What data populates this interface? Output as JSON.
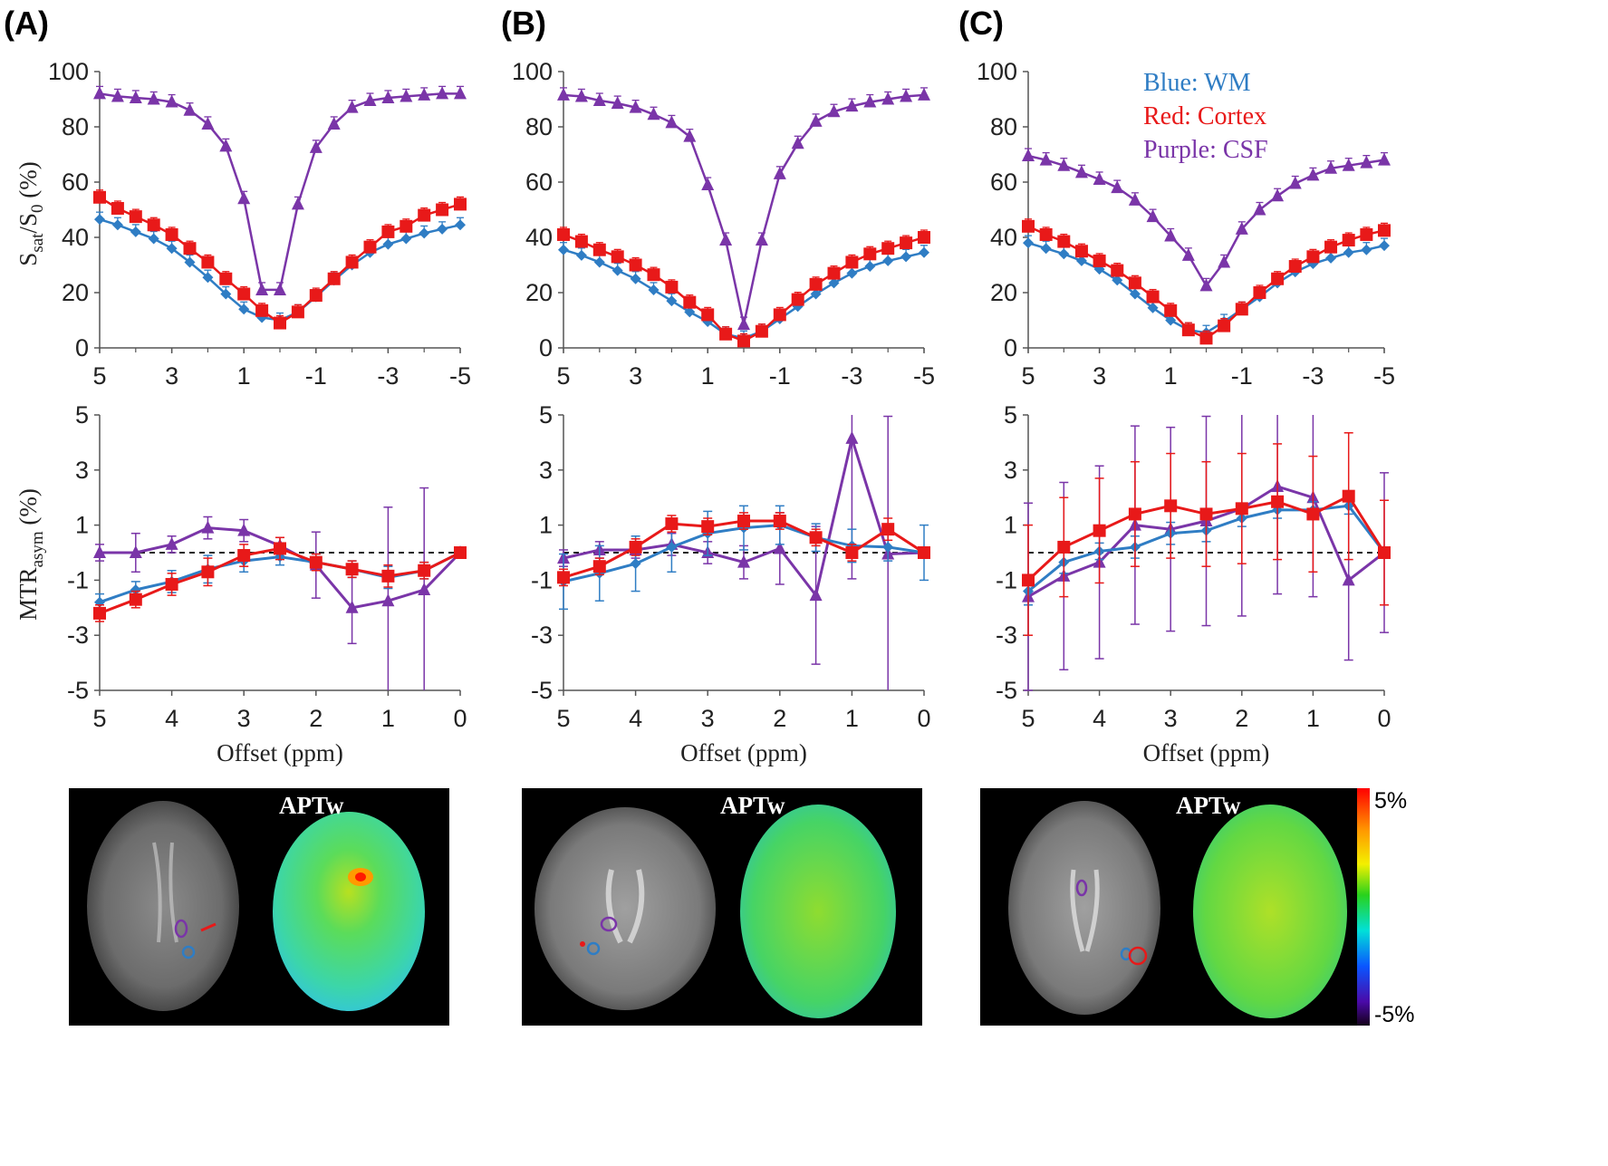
{
  "panel_labels": [
    "(A)",
    "(B)",
    "(C)"
  ],
  "legend": {
    "wm": "Blue: WM",
    "cortex": "Red: Cortex",
    "csf": "Purple: CSF"
  },
  "colors": {
    "wm": "#2f7dc4",
    "cortex": "#e81919",
    "csf": "#7a35a8"
  },
  "top_y_label": {
    "main": "S",
    "sub1": "sat",
    "mid": "/S",
    "sub2": "0",
    "tail": " (%)"
  },
  "mid_y_label": {
    "main": "MTR",
    "sub": "asym",
    "tail": " (%)"
  },
  "x_title": "Offset (ppm)",
  "top_x_ticks": [
    "5",
    "3",
    "1",
    "-1",
    "-3",
    "-5"
  ],
  "top_y_ticks": [
    "0",
    "20",
    "40",
    "60",
    "80",
    "100"
  ],
  "mid_x_ticks": [
    "5",
    "4",
    "3",
    "2",
    "1",
    "0"
  ],
  "mid_y_ticks": [
    "-5",
    "-3",
    "-1",
    "1",
    "3",
    "5"
  ],
  "image_label": "APTw",
  "colorbar": {
    "max": "5%",
    "min": "-5%"
  },
  "chart_data": [
    {
      "type": "line",
      "panel": "(A)",
      "xlabel": "",
      "ylabel": "Ssat/S0 (%)",
      "xlim": [
        5,
        -5
      ],
      "ylim": [
        0,
        100
      ],
      "x": [
        5,
        4.5,
        4,
        3.5,
        3,
        2.5,
        2,
        1.5,
        1,
        0.5,
        0,
        -0.5,
        -1,
        -1.5,
        -2,
        -2.5,
        -3,
        -3.5,
        -4,
        -4.5,
        -5
      ],
      "series": [
        {
          "name": "WM",
          "marker": "diamond",
          "values": [
            46.5,
            44.5,
            42,
            39.5,
            36,
            31,
            25.5,
            19.5,
            14,
            11,
            10,
            13,
            18.5,
            24.5,
            30,
            34.5,
            37.5,
            39.5,
            41.5,
            43,
            44.5
          ]
        },
        {
          "name": "Cortex",
          "marker": "square",
          "values": [
            54.5,
            50.5,
            47.5,
            44.5,
            41,
            36,
            31,
            25,
            19.5,
            13.5,
            9,
            13,
            19,
            25,
            31,
            36.5,
            42,
            44,
            48,
            50,
            52
          ]
        },
        {
          "name": "CSF",
          "marker": "triangle",
          "values": [
            92,
            91,
            90.5,
            90,
            89,
            86,
            81,
            73,
            54,
            21,
            21,
            52,
            72.5,
            81,
            87,
            89.5,
            90.5,
            91,
            91.5,
            92,
            92
          ]
        }
      ]
    },
    {
      "type": "line",
      "panel": "(B)",
      "xlabel": "",
      "ylabel": "Ssat/S0 (%)",
      "xlim": [
        5,
        -5
      ],
      "ylim": [
        0,
        100
      ],
      "x": [
        5,
        4.5,
        4,
        3.5,
        3,
        2.5,
        2,
        1.5,
        1,
        0.5,
        0,
        -0.5,
        -1,
        -1.5,
        -2,
        -2.5,
        -3,
        -3.5,
        -4,
        -4.5,
        -5
      ],
      "series": [
        {
          "name": "WM",
          "marker": "diamond",
          "values": [
            35.5,
            33.5,
            31,
            28,
            25,
            21,
            17,
            13,
            9.5,
            5,
            3.5,
            6,
            10.5,
            15,
            19.5,
            23.5,
            27,
            29.5,
            31.5,
            33,
            34.5
          ]
        },
        {
          "name": "Cortex",
          "marker": "square",
          "values": [
            41,
            38.5,
            35.5,
            33,
            30,
            26.5,
            22,
            16.5,
            12,
            5,
            2.5,
            6,
            12,
            17.5,
            23,
            27,
            31,
            34,
            36,
            38,
            40
          ]
        },
        {
          "name": "CSF",
          "marker": "triangle",
          "values": [
            91.5,
            91,
            89.5,
            88.5,
            87,
            84.5,
            81.5,
            76.5,
            59,
            39,
            8.5,
            39,
            63,
            74,
            82,
            85.5,
            87.5,
            89,
            90,
            91,
            91.5
          ]
        }
      ]
    },
    {
      "type": "line",
      "panel": "(C)",
      "xlabel": "",
      "ylabel": "Ssat/S0 (%)",
      "xlim": [
        5,
        -5
      ],
      "ylim": [
        0,
        100
      ],
      "x": [
        5,
        4.5,
        4,
        3.5,
        3,
        2.5,
        2,
        1.5,
        1,
        0.5,
        0,
        -0.5,
        -1,
        -1.5,
        -2,
        -2.5,
        -3,
        -3.5,
        -4,
        -4.5,
        -5
      ],
      "series": [
        {
          "name": "WM",
          "marker": "diamond",
          "values": [
            38,
            36,
            34,
            31.5,
            28.5,
            24.5,
            19.5,
            14.5,
            10,
            6.5,
            5.5,
            9.5,
            14,
            18.5,
            23.5,
            27.5,
            30.5,
            32.5,
            34.5,
            35.5,
            37
          ]
        },
        {
          "name": "Cortex",
          "marker": "square",
          "values": [
            44,
            41,
            38.5,
            35,
            31.5,
            28,
            23.5,
            18.5,
            13.5,
            6.5,
            3.5,
            8,
            14,
            20,
            25,
            29.5,
            33,
            36.5,
            39,
            41,
            42.5
          ]
        },
        {
          "name": "CSF",
          "marker": "triangle",
          "values": [
            69.5,
            68,
            66,
            63.5,
            61,
            58,
            53.5,
            47.5,
            40.5,
            33.5,
            22.5,
            31,
            43,
            50,
            55,
            59.5,
            62.5,
            65,
            66,
            67,
            68
          ]
        }
      ]
    },
    {
      "type": "line",
      "panel": "(A)",
      "xlabel": "Offset (ppm)",
      "ylabel": "MTRasym (%)",
      "xlim": [
        5,
        0
      ],
      "ylim": [
        -5,
        5
      ],
      "reference_line": 0,
      "x": [
        5,
        4.5,
        4,
        3.5,
        3,
        2.5,
        2,
        1.5,
        1,
        0.5,
        0
      ],
      "series": [
        {
          "name": "WM",
          "marker": "diamond",
          "values": [
            -1.8,
            -1.35,
            -1.05,
            -0.6,
            -0.3,
            -0.15,
            -0.35,
            -0.6,
            -0.9,
            -0.65,
            0
          ],
          "err": [
            0.3,
            0.3,
            0.4,
            0.5,
            0.4,
            0.3,
            0.3,
            0.3,
            0.4,
            0.3,
            0
          ]
        },
        {
          "name": "Cortex",
          "marker": "square",
          "values": [
            -2.2,
            -1.7,
            -1.15,
            -0.7,
            -0.1,
            0.15,
            -0.35,
            -0.6,
            -0.85,
            -0.65,
            0
          ],
          "err": [
            0.3,
            0.3,
            0.4,
            0.5,
            0.4,
            0.4,
            0.3,
            0.3,
            0.4,
            0.3,
            0
          ]
        },
        {
          "name": "CSF",
          "marker": "triangle",
          "values": [
            0,
            0,
            0.3,
            0.9,
            0.8,
            0.25,
            -0.45,
            -2.0,
            -1.75,
            -1.35,
            0
          ],
          "err": [
            0.3,
            0.7,
            0.3,
            0.4,
            0.4,
            0.3,
            1.2,
            1.3,
            3.4,
            3.7,
            0
          ]
        }
      ]
    },
    {
      "type": "line",
      "panel": "(B)",
      "xlabel": "Offset (ppm)",
      "ylabel": "MTRasym (%)",
      "xlim": [
        5,
        0
      ],
      "ylim": [
        -5,
        5
      ],
      "reference_line": 0,
      "x": [
        5,
        4.5,
        4,
        3.5,
        3,
        2.5,
        2,
        1.5,
        1,
        0.5,
        0
      ],
      "series": [
        {
          "name": "WM",
          "marker": "diamond",
          "values": [
            -1.05,
            -0.75,
            -0.4,
            0.2,
            0.7,
            0.9,
            1.0,
            0.55,
            0.25,
            0.2,
            0
          ],
          "err": [
            1.0,
            1.0,
            1.0,
            0.9,
            0.8,
            0.8,
            0.7,
            0.5,
            0.6,
            0.5,
            1.0
          ]
        },
        {
          "name": "Cortex",
          "marker": "square",
          "values": [
            -0.9,
            -0.5,
            0.2,
            1.05,
            0.95,
            1.15,
            1.15,
            0.55,
            0,
            0.85,
            0
          ],
          "err": [
            0.3,
            0.3,
            0.3,
            0.3,
            0.3,
            0.3,
            0.3,
            0.3,
            0.3,
            0.4,
            0
          ]
        },
        {
          "name": "CSF",
          "marker": "triangle",
          "values": [
            -0.2,
            0.1,
            0.1,
            0.3,
            0,
            -0.35,
            0.15,
            -1.55,
            4.15,
            -0.05,
            0
          ],
          "err": [
            0.3,
            0.3,
            0.3,
            0.4,
            0.4,
            0.6,
            1.3,
            2.5,
            5.1,
            5.0,
            0
          ]
        }
      ]
    },
    {
      "type": "line",
      "panel": "(C)",
      "xlabel": "Offset (ppm)",
      "ylabel": "MTRasym (%)",
      "xlim": [
        5,
        0
      ],
      "ylim": [
        -5,
        5
      ],
      "reference_line": 0,
      "x": [
        5,
        4.5,
        4,
        3.5,
        3,
        2.5,
        2,
        1.5,
        1,
        0.5,
        0
      ],
      "series": [
        {
          "name": "WM",
          "marker": "diamond",
          "values": [
            -1.4,
            -0.35,
            0.05,
            0.2,
            0.7,
            0.8,
            1.25,
            1.55,
            1.55,
            1.7,
            0
          ],
          "err": [
            0.5,
            0.4,
            0.3,
            0.4,
            0.4,
            0.4,
            0.3,
            0.3,
            0.3,
            0.3,
            0
          ]
        },
        {
          "name": "Cortex",
          "marker": "square",
          "values": [
            -1.0,
            0.2,
            0.8,
            1.4,
            1.7,
            1.4,
            1.6,
            1.85,
            1.4,
            2.05,
            0
          ],
          "err": [
            2.0,
            1.8,
            1.9,
            1.9,
            1.9,
            1.9,
            2.0,
            2.1,
            2.1,
            2.3,
            1.9
          ]
        },
        {
          "name": "CSF",
          "marker": "triangle",
          "values": [
            -1.6,
            -0.85,
            -0.35,
            1.0,
            0.85,
            1.15,
            1.6,
            2.4,
            2.0,
            -1.0,
            0
          ],
          "err": [
            3.4,
            3.4,
            3.5,
            3.6,
            3.7,
            3.8,
            3.9,
            3.9,
            3.6,
            2.9,
            2.9
          ]
        }
      ]
    }
  ]
}
